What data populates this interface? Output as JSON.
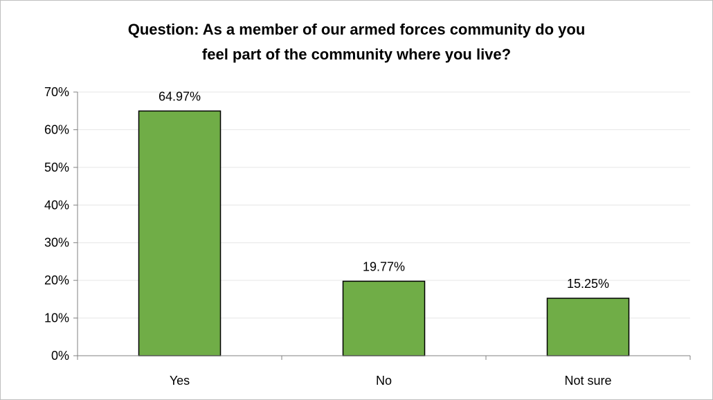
{
  "chart_data": {
    "type": "bar",
    "title_line1": "Question:  As a member of our armed forces community do you",
    "title_line2": "feel part of the community where you live?",
    "categories": [
      "Yes",
      "No",
      "Not sure"
    ],
    "values": [
      64.97,
      19.77,
      15.25
    ],
    "data_labels": [
      "64.97%",
      "19.77%",
      "15.25%"
    ],
    "ylim": [
      0,
      70
    ],
    "yticks": [
      0,
      10,
      20,
      30,
      40,
      50,
      60,
      70
    ],
    "ytick_labels": [
      "0%",
      "10%",
      "20%",
      "30%",
      "40%",
      "50%",
      "60%",
      "70%"
    ],
    "xlabel": "",
    "ylabel": "",
    "grid": true,
    "legend": "none",
    "bar_color": "#70ad47",
    "bar_edge_color": "#000000",
    "grid_color": "#e6e6e6"
  }
}
